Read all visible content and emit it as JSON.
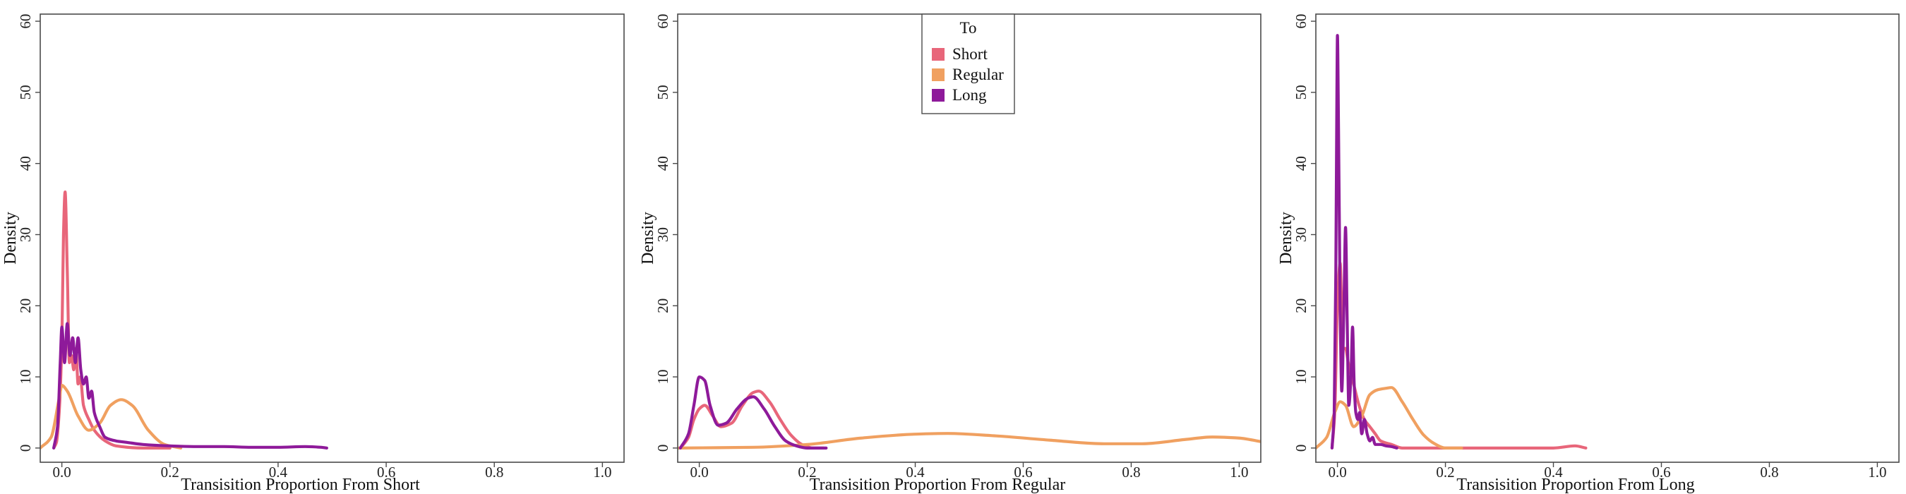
{
  "figure": {
    "legend": {
      "title": "To",
      "entries": [
        {
          "name": "Short",
          "color": "#E8667A"
        },
        {
          "name": "Regular",
          "color": "#F0A060"
        },
        {
          "name": "Long",
          "color": "#8E1A9A"
        }
      ]
    }
  },
  "chart_data": [
    {
      "type": "line",
      "title": "",
      "xlabel": "Transisition Proportion From Short",
      "ylabel": "Density",
      "xlim": [
        -0.04,
        1.04
      ],
      "ylim": [
        -2,
        61
      ],
      "xticks": [
        0.0,
        0.2,
        0.4,
        0.6,
        0.8,
        1.0
      ],
      "xtick_labels": [
        "0.0",
        "0.2",
        "0.4",
        "0.6",
        "0.8",
        "1.0"
      ],
      "yticks": [
        0,
        10,
        20,
        30,
        40,
        50,
        60
      ],
      "ytick_labels": [
        "0",
        "10",
        "20",
        "30",
        "40",
        "50",
        "60"
      ],
      "legend": false,
      "series": [
        {
          "name": "Short",
          "color": "#E8667A",
          "x": [
            -0.015,
            -0.01,
            -0.005,
            0.0,
            0.003,
            0.006,
            0.01,
            0.014,
            0.018,
            0.022,
            0.026,
            0.03,
            0.034,
            0.04,
            0.05,
            0.06,
            0.08,
            0.1,
            0.15,
            0.2
          ],
          "y": [
            0,
            0.8,
            5,
            15,
            30,
            36,
            25,
            12,
            13,
            11,
            14,
            9,
            10,
            6,
            4,
            2.5,
            1,
            0.3,
            0,
            0
          ]
        },
        {
          "name": "Regular",
          "color": "#F0A060",
          "x": [
            -0.04,
            -0.02,
            -0.005,
            0.0,
            0.01,
            0.03,
            0.05,
            0.07,
            0.09,
            0.11,
            0.13,
            0.16,
            0.19,
            0.22
          ],
          "y": [
            0,
            1.5,
            7,
            8.8,
            8,
            4.5,
            2.5,
            3.5,
            6,
            6.8,
            6,
            2.5,
            0.5,
            0
          ]
        },
        {
          "name": "Long",
          "color": "#8E1A9A",
          "x": [
            -0.015,
            -0.008,
            -0.003,
            0.0,
            0.005,
            0.01,
            0.015,
            0.02,
            0.025,
            0.03,
            0.035,
            0.04,
            0.045,
            0.05,
            0.055,
            0.06,
            0.07,
            0.08,
            0.1,
            0.12,
            0.15,
            0.2,
            0.25,
            0.3,
            0.35,
            0.4,
            0.45,
            0.48,
            0.49
          ],
          "y": [
            0,
            3,
            12,
            17,
            12,
            17.5,
            13,
            15.5,
            12,
            15.5,
            11,
            9,
            10,
            7,
            8,
            5,
            3,
            1.5,
            1,
            0.8,
            0.5,
            0.3,
            0.2,
            0.2,
            0.1,
            0.1,
            0.2,
            0.1,
            0
          ]
        }
      ]
    },
    {
      "type": "line",
      "title": "",
      "xlabel": "Transisition Proportion From Regular",
      "ylabel": "Density",
      "xlim": [
        -0.04,
        1.04
      ],
      "ylim": [
        -2,
        61
      ],
      "xticks": [
        0.0,
        0.2,
        0.4,
        0.6,
        0.8,
        1.0
      ],
      "xtick_labels": [
        "0.0",
        "0.2",
        "0.4",
        "0.6",
        "0.8",
        "1.0"
      ],
      "yticks": [
        0,
        10,
        20,
        30,
        40,
        50,
        60
      ],
      "ytick_labels": [
        "0",
        "10",
        "20",
        "30",
        "40",
        "50",
        "60"
      ],
      "legend": true,
      "series": [
        {
          "name": "Short",
          "color": "#E8667A",
          "x": [
            -0.035,
            -0.02,
            -0.01,
            0.0,
            0.01,
            0.025,
            0.04,
            0.06,
            0.08,
            0.1,
            0.11,
            0.13,
            0.15,
            0.17,
            0.19,
            0.21,
            0.23
          ],
          "y": [
            0,
            1.5,
            4,
            5.5,
            6,
            4.5,
            3,
            3.5,
            6,
            7.8,
            8,
            6.5,
            4,
            1.8,
            0.5,
            0,
            0
          ]
        },
        {
          "name": "Regular",
          "color": "#F0A060",
          "x": [
            -0.04,
            0.1,
            0.2,
            0.3,
            0.4,
            0.46,
            0.55,
            0.65,
            0.75,
            0.82,
            0.9,
            0.95,
            1.0,
            1.04
          ],
          "y": [
            0,
            0.1,
            0.5,
            1.4,
            1.95,
            2.05,
            1.7,
            1.1,
            0.6,
            0.6,
            1.2,
            1.55,
            1.4,
            0.9
          ]
        },
        {
          "name": "Long",
          "color": "#8E1A9A",
          "x": [
            -0.035,
            -0.02,
            -0.01,
            0.0,
            0.01,
            0.02,
            0.035,
            0.05,
            0.07,
            0.09,
            0.1,
            0.12,
            0.14,
            0.16,
            0.18,
            0.2,
            0.22,
            0.235
          ],
          "y": [
            0,
            2,
            6,
            10,
            9.5,
            6,
            3.2,
            3.5,
            5.5,
            7,
            7.2,
            5.5,
            3,
            1,
            0.3,
            0,
            0,
            0
          ]
        }
      ]
    },
    {
      "type": "line",
      "title": "",
      "xlabel": "Transisition Proportion From Long",
      "ylabel": "Density",
      "xlim": [
        -0.04,
        1.04
      ],
      "ylim": [
        -2,
        61
      ],
      "xticks": [
        0.0,
        0.2,
        0.4,
        0.6,
        0.8,
        1.0
      ],
      "xtick_labels": [
        "0.0",
        "0.2",
        "0.4",
        "0.6",
        "0.8",
        "1.0"
      ],
      "yticks": [
        0,
        10,
        20,
        30,
        40,
        50,
        60
      ],
      "ytick_labels": [
        "0",
        "10",
        "20",
        "30",
        "40",
        "50",
        "60"
      ],
      "legend": false,
      "series": [
        {
          "name": "Short",
          "color": "#E8667A",
          "x": [
            -0.01,
            -0.005,
            0.0,
            0.005,
            0.01,
            0.015,
            0.02,
            0.03,
            0.04,
            0.05,
            0.06,
            0.07,
            0.08,
            0.1,
            0.12,
            0.2,
            0.3,
            0.4,
            0.44,
            0.46
          ],
          "y": [
            0,
            5,
            20,
            26,
            14,
            14,
            12,
            9,
            6,
            4,
            3,
            2,
            1,
            0.5,
            0,
            0,
            0,
            0,
            0.3,
            0
          ]
        },
        {
          "name": "Regular",
          "color": "#F0A060",
          "x": [
            -0.04,
            -0.02,
            -0.005,
            0.005,
            0.015,
            0.03,
            0.045,
            0.06,
            0.075,
            0.09,
            0.1,
            0.12,
            0.14,
            0.16,
            0.18,
            0.2,
            0.23
          ],
          "y": [
            0,
            1.5,
            5,
            6.5,
            6,
            3,
            4.5,
            7.5,
            8.2,
            8.4,
            8.5,
            6.5,
            4,
            1.8,
            0.6,
            0,
            0
          ]
        },
        {
          "name": "Long",
          "color": "#8E1A9A",
          "x": [
            -0.01,
            -0.006,
            -0.003,
            -0.001,
            0.0,
            0.002,
            0.005,
            0.008,
            0.012,
            0.015,
            0.018,
            0.021,
            0.025,
            0.028,
            0.031,
            0.034,
            0.038,
            0.041,
            0.045,
            0.05,
            0.055,
            0.06,
            0.065,
            0.07,
            0.08,
            0.09,
            0.1,
            0.11
          ],
          "y": [
            0,
            5,
            25,
            50,
            58,
            45,
            20,
            8,
            20,
            31,
            18,
            6,
            10,
            17,
            9,
            5,
            4,
            5,
            2,
            4,
            2,
            1,
            1.5,
            0.5,
            0.5,
            0.3,
            0.2,
            0
          ]
        }
      ]
    }
  ]
}
